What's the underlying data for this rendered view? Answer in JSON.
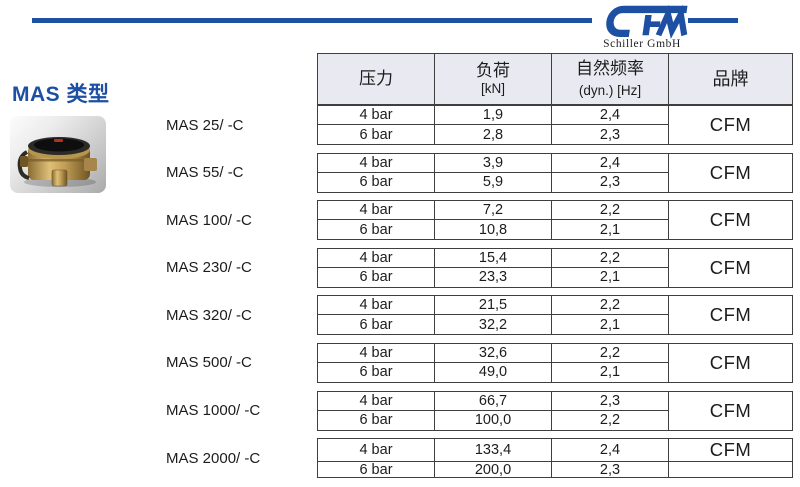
{
  "header": {
    "logo_text": "CFM",
    "logo_subtitle": "Schiller GmbH"
  },
  "section": {
    "title": "MAS 类型"
  },
  "table": {
    "columns": {
      "pressure": "压力",
      "load": "负荷",
      "load_unit": "[kN]",
      "frequency": "自然频率",
      "frequency_unit": "(dyn.) [Hz]",
      "brand": "品牌"
    },
    "groups": [
      {
        "model": "MAS 25/ -C",
        "brand": "CFM",
        "brand_merged": true,
        "rows": [
          {
            "pressure": "4 bar",
            "load": "1,9",
            "frequency": "2,4"
          },
          {
            "pressure": "6 bar",
            "load": "2,8",
            "frequency": "2,3"
          }
        ]
      },
      {
        "model": "MAS 55/ -C",
        "brand": "CFM",
        "brand_merged": true,
        "rows": [
          {
            "pressure": "4 bar",
            "load": "3,9",
            "frequency": "2,4"
          },
          {
            "pressure": "6 bar",
            "load": "5,9",
            "frequency": "2,3"
          }
        ]
      },
      {
        "model": "MAS 100/ -C",
        "brand": "CFM",
        "brand_merged": true,
        "rows": [
          {
            "pressure": "4 bar",
            "load": "7,2",
            "frequency": "2,2"
          },
          {
            "pressure": "6 bar",
            "load": "10,8",
            "frequency": "2,1"
          }
        ]
      },
      {
        "model": "MAS 230/ -C",
        "brand": "CFM",
        "brand_merged": true,
        "rows": [
          {
            "pressure": "4 bar",
            "load": "15,4",
            "frequency": "2,2"
          },
          {
            "pressure": "6 bar",
            "load": "23,3",
            "frequency": "2,1"
          }
        ]
      },
      {
        "model": "MAS 320/ -C",
        "brand": "CFM",
        "brand_merged": true,
        "rows": [
          {
            "pressure": "4 bar",
            "load": "21,5",
            "frequency": "2,2"
          },
          {
            "pressure": "6 bar",
            "load": "32,2",
            "frequency": "2,1"
          }
        ]
      },
      {
        "model": "MAS 500/ -C",
        "brand": "CFM",
        "brand_merged": true,
        "rows": [
          {
            "pressure": "4 bar",
            "load": "32,6",
            "frequency": "2,2"
          },
          {
            "pressure": "6 bar",
            "load": "49,0",
            "frequency": "2,1"
          }
        ]
      },
      {
        "model": "MAS 1000/ -C",
        "brand": "CFM",
        "brand_merged": true,
        "rows": [
          {
            "pressure": "4 bar",
            "load": "66,7",
            "frequency": "2,3"
          },
          {
            "pressure": "6 bar",
            "load": "100,0",
            "frequency": "2,2"
          }
        ]
      },
      {
        "model": "MAS 2000/ -C",
        "brand": "CFM",
        "brand_merged": false,
        "rows": [
          {
            "pressure": "4 bar",
            "load": "133,4",
            "frequency": "2,4"
          },
          {
            "pressure": "6 bar",
            "load": "200,0",
            "frequency": "2,3"
          }
        ]
      }
    ]
  },
  "colors": {
    "brand_blue": "#1d4fa3",
    "header_bg": "#e9e9f2",
    "table_border": "#3f3f3f"
  }
}
